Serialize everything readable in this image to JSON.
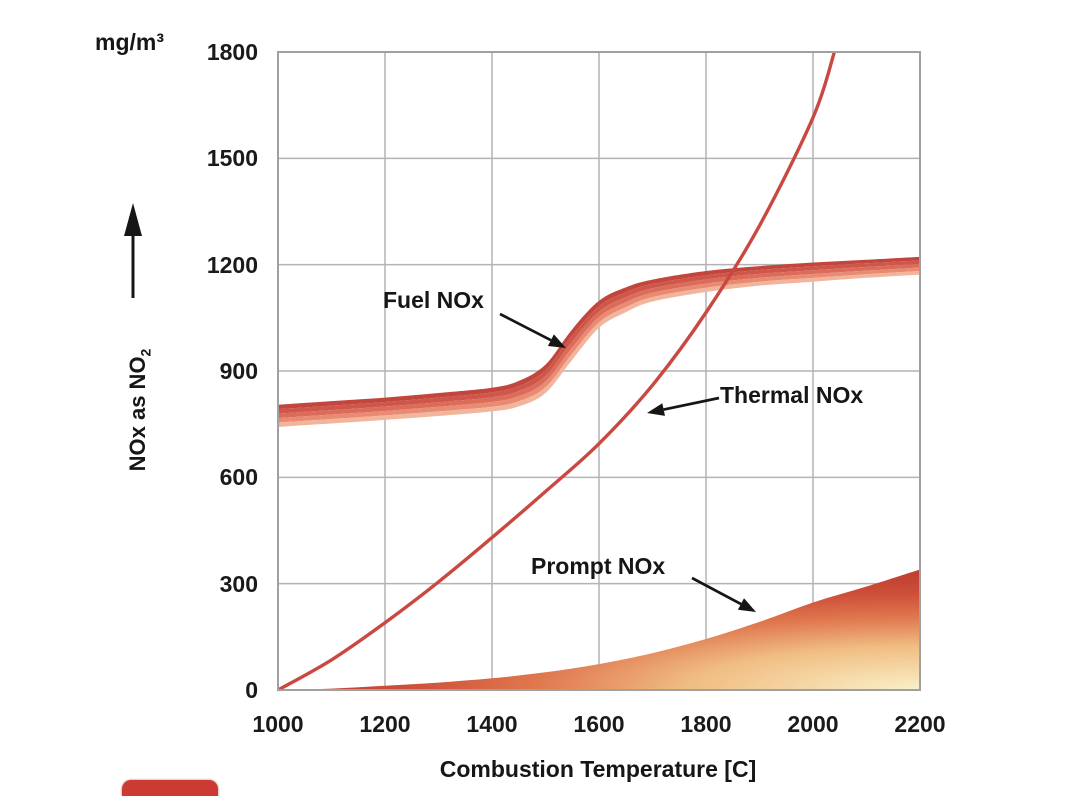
{
  "figure": {
    "y_unit": "mg/m³",
    "y_title_main": "NOx as NO",
    "y_title_sub": "2",
    "x_title": "Combustion Temperature [C]"
  },
  "annotations": {
    "fuel": {
      "label": "Fuel NOx"
    },
    "thermal": {
      "label": "Thermal NOx"
    },
    "prompt": {
      "label": "Prompt NOx"
    }
  },
  "badge": {
    "color": "#cd3a33"
  },
  "chart_data": {
    "type": "line",
    "title": "",
    "xlabel": "Combustion Temperature [C]",
    "ylabel": "NOx as NO2 (mg/m³)",
    "xlim": [
      1000,
      2200
    ],
    "ylim": [
      0,
      1800
    ],
    "grid": true,
    "x_ticks": [
      1000,
      1200,
      1400,
      1600,
      1800,
      2000,
      2200
    ],
    "y_ticks": [
      0,
      300,
      600,
      900,
      1200,
      1500,
      1800
    ],
    "series": [
      {
        "name": "Fuel NOx",
        "style": "band",
        "x": [
          1000,
          1100,
          1200,
          1300,
          1400,
          1450,
          1500,
          1550,
          1600,
          1650,
          1700,
          1800,
          1900,
          2000,
          2100,
          2200
        ],
        "y_top": [
          805,
          815,
          825,
          838,
          853,
          872,
          918,
          1018,
          1098,
          1136,
          1158,
          1182,
          1196,
          1206,
          1214,
          1222
        ],
        "y_bottom": [
          742,
          752,
          762,
          773,
          786,
          800,
          838,
          932,
          1022,
          1066,
          1096,
          1123,
          1141,
          1152,
          1163,
          1172
        ]
      },
      {
        "name": "Thermal NOx",
        "style": "line",
        "x": [
          1000,
          1100,
          1200,
          1300,
          1400,
          1500,
          1600,
          1700,
          1800,
          1900,
          2000,
          2040
        ],
        "y": [
          0,
          85,
          190,
          305,
          430,
          560,
          695,
          860,
          1065,
          1310,
          1615,
          1800
        ]
      },
      {
        "name": "Prompt NOx",
        "style": "area",
        "x": [
          1000,
          1100,
          1200,
          1300,
          1400,
          1500,
          1600,
          1700,
          1800,
          1900,
          2000,
          2100,
          2200
        ],
        "y": [
          0,
          4,
          12,
          21,
          33,
          50,
          73,
          104,
          144,
          192,
          247,
          292,
          340
        ]
      }
    ],
    "colors": {
      "thermal_line": "#ca4842",
      "fuel_band_shades": [
        "#c3463c",
        "#ce564a",
        "#dc6c5a",
        "#e98a72",
        "#f2b59c"
      ],
      "prompt_gradient_light": "#faf0c8",
      "prompt_gradient_dark": "#c24133",
      "grid": "#b3b3b3",
      "plot_border": "#a0a0a0",
      "annotation_arrow": "#161616",
      "text": "#161616",
      "badge": "#cd3a33"
    }
  }
}
